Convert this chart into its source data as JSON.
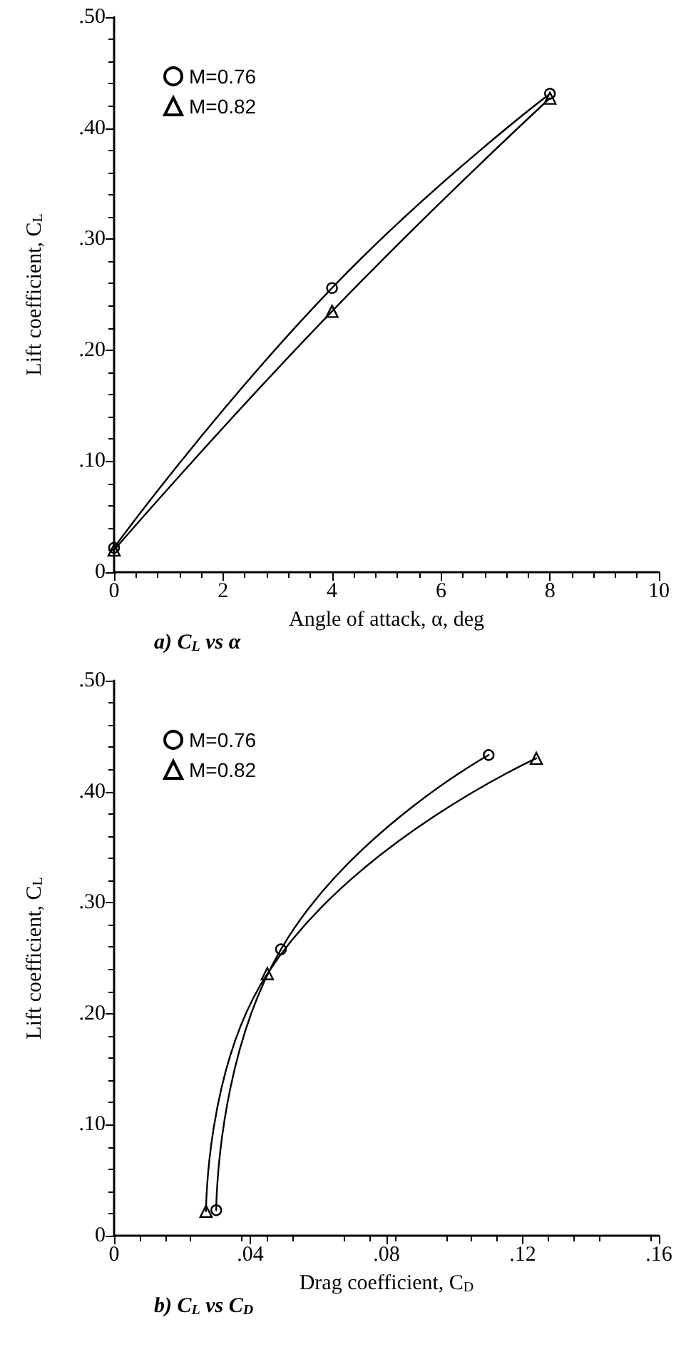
{
  "chart_data": [
    {
      "type": "line",
      "title": "a) C$_{L}$ vs α",
      "xlabel": "Angle of attack, α, deg",
      "ylabel": "Lift coefficient, C$_{L}$",
      "series": [
        {
          "name": "M=0.76",
          "color": "#000000",
          "marker": "circle",
          "x": [
            0,
            4,
            8
          ],
          "values": [
            0.022,
            0.256,
            0.431
          ]
        },
        {
          "name": "M=0.82",
          "color": "#000000",
          "marker": "triangle",
          "x": [
            0,
            4,
            8
          ],
          "values": [
            0.02,
            0.235,
            0.427
          ]
        }
      ],
      "xlim": [
        0,
        10
      ],
      "xticks": [
        0,
        2,
        4,
        6,
        8,
        10
      ],
      "ylim": [
        0,
        0.5
      ],
      "yticks": [
        0,
        {
          "value": 0.1,
          "label": ".10"
        },
        {
          "value": 0.2,
          "label": ".20"
        },
        {
          "value": 0.3,
          "label": ".30"
        },
        {
          "value": 0.4,
          "label": ".40"
        },
        {
          "value": 0.5,
          "label": ".50"
        }
      ],
      "legend": "top left",
      "grid": false
    },
    {
      "type": "line",
      "title": "b) C$_{L}$ vs C$_{D}$",
      "xlabel": "Drag coefficient, C$_{D}$",
      "ylabel": "Lift coefficient, C$_{L}$",
      "series": [
        {
          "name": "M=0.76",
          "color": "#000000",
          "marker": "circle",
          "x": [
            0.03,
            0.049,
            0.11
          ],
          "values": [
            0.023,
            0.258,
            0.433
          ]
        },
        {
          "name": "M=0.82",
          "color": "#000000",
          "marker": "triangle",
          "x": [
            0.027,
            0.045,
            0.124
          ],
          "values": [
            0.022,
            0.236,
            0.43
          ]
        }
      ],
      "xlim": [
        0,
        0.16
      ],
      "xticks": [
        0,
        {
          "value": 0.04,
          "label": ".04"
        },
        {
          "value": 0.08,
          "label": ".08"
        },
        {
          "value": 0.12,
          "label": ".12"
        },
        {
          "value": 0.16,
          "label": ".16"
        }
      ],
      "ylim": [
        0,
        0.5
      ],
      "yticks": [
        0,
        {
          "value": 0.1,
          "label": ".10"
        },
        {
          "value": 0.2,
          "label": ".20"
        },
        {
          "value": 0.3,
          "label": ".30"
        },
        {
          "value": 0.4,
          "label": ".40"
        },
        {
          "value": 0.5,
          "label": ".50"
        }
      ],
      "legend": "top left",
      "grid": false
    }
  ]
}
